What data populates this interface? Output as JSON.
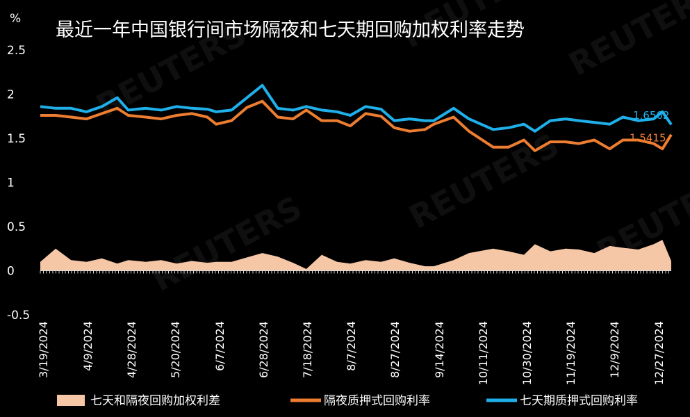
{
  "chart_data": {
    "type": "line",
    "title": "最近一年中国银行间市场隔夜和七天期回购加权利率走势",
    "ylabel": "%",
    "ylim": [
      -0.5,
      2.5
    ],
    "yticks": [
      "2.5",
      "2",
      "1.5",
      "1",
      "0.5",
      "0",
      "-0.5"
    ],
    "x_tick_labels": [
      "3/19/2024",
      "4/9/2024",
      "4/28/2024",
      "5/20/2024",
      "6/7/2024",
      "6/28/2024",
      "7/18/2024",
      "8/7/2024",
      "8/27/2024",
      "9/14/2024",
      "10/11/2024",
      "10/30/2024",
      "11/19/2024",
      "12/9/2024",
      "12/27/2024"
    ],
    "dates": [
      "3/19/2024",
      "3/26/2024",
      "4/2/2024",
      "4/9/2024",
      "4/16/2024",
      "4/23/2024",
      "4/28/2024",
      "5/6/2024",
      "5/13/2024",
      "5/20/2024",
      "5/27/2024",
      "6/3/2024",
      "6/7/2024",
      "6/14/2024",
      "6/21/2024",
      "6/28/2024",
      "7/5/2024",
      "7/12/2024",
      "7/18/2024",
      "7/25/2024",
      "8/1/2024",
      "8/7/2024",
      "8/14/2024",
      "8/21/2024",
      "8/27/2024",
      "9/3/2024",
      "9/10/2024",
      "9/14/2024",
      "9/23/2024",
      "9/30/2024",
      "10/11/2024",
      "10/18/2024",
      "10/25/2024",
      "10/30/2024",
      "11/6/2024",
      "11/13/2024",
      "11/19/2024",
      "11/26/2024",
      "12/3/2024",
      "12/9/2024",
      "12/16/2024",
      "12/23/2024",
      "12/27/2024",
      "12/31/2024"
    ],
    "series": [
      {
        "name": "七天和隔夜回购加权利差",
        "type": "area",
        "color": "#f6c7a6",
        "values": [
          0.1,
          0.25,
          0.12,
          0.1,
          0.14,
          0.08,
          0.12,
          0.1,
          0.12,
          0.08,
          0.11,
          0.09,
          0.1,
          0.1,
          0.15,
          0.2,
          0.16,
          0.09,
          0.02,
          0.18,
          0.1,
          0.08,
          0.12,
          0.1,
          0.14,
          0.09,
          0.05,
          0.05,
          0.12,
          0.2,
          0.25,
          0.22,
          0.18,
          0.3,
          0.22,
          0.25,
          0.24,
          0.2,
          0.28,
          0.26,
          0.24,
          0.3,
          0.35,
          0.11
        ]
      },
      {
        "name": "隔夜质押式回购利率",
        "type": "line",
        "color": "#ed7d31",
        "values": [
          1.76,
          1.76,
          1.74,
          1.72,
          1.78,
          1.84,
          1.76,
          1.74,
          1.72,
          1.76,
          1.78,
          1.74,
          1.66,
          1.7,
          1.85,
          1.92,
          1.74,
          1.72,
          1.82,
          1.7,
          1.7,
          1.64,
          1.78,
          1.75,
          1.62,
          1.58,
          1.6,
          1.66,
          1.74,
          1.58,
          1.4,
          1.4,
          1.48,
          1.36,
          1.46,
          1.46,
          1.44,
          1.48,
          1.38,
          1.48,
          1.48,
          1.44,
          1.38,
          1.5415
        ]
      },
      {
        "name": "七天期质押式回购利率",
        "type": "line",
        "color": "#1fb0ea",
        "values": [
          1.86,
          1.84,
          1.84,
          1.8,
          1.86,
          1.96,
          1.82,
          1.84,
          1.82,
          1.86,
          1.84,
          1.83,
          1.8,
          1.82,
          1.96,
          2.1,
          1.84,
          1.82,
          1.86,
          1.82,
          1.8,
          1.76,
          1.86,
          1.83,
          1.7,
          1.72,
          1.7,
          1.7,
          1.84,
          1.72,
          1.6,
          1.62,
          1.66,
          1.58,
          1.7,
          1.72,
          1.7,
          1.68,
          1.66,
          1.74,
          1.7,
          1.72,
          1.8,
          1.6562
        ]
      }
    ],
    "end_labels": [
      "1.6562",
      "1.5415"
    ],
    "legend_position": "bottom",
    "watermark": "REUTERS"
  }
}
